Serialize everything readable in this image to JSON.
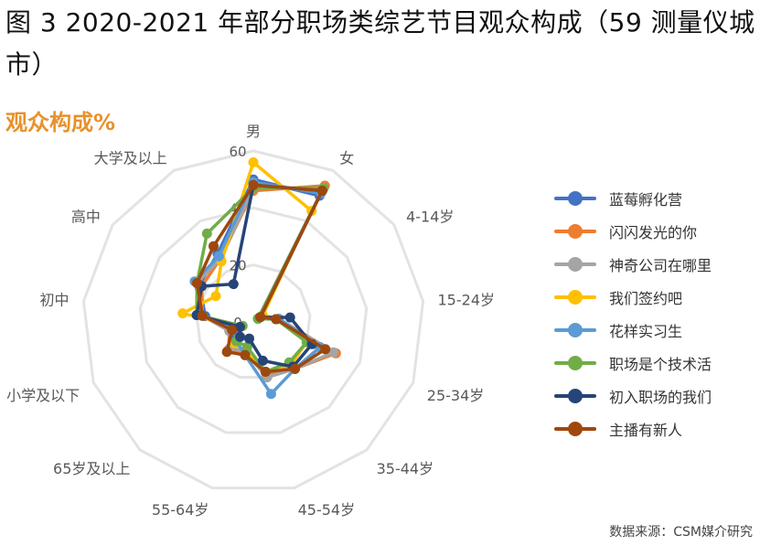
{
  "title": "图 3 2020-2021 年部分职场类综艺节目观众构成（59 测量仪城市）",
  "subtitle": "观众构成%",
  "source": "数据来源：CSM媒介研究",
  "chart_data": {
    "type": "radar",
    "axes": [
      "男",
      "女",
      "4-14岁",
      "15-24岁",
      "25-34岁",
      "35-44岁",
      "45-54岁",
      "55-64岁",
      "65岁及以上",
      "小学及以下",
      "初中",
      "高中",
      "大学及以上"
    ],
    "radial_ticks": [
      0,
      20,
      40,
      60
    ],
    "rlim": [
      0,
      60
    ],
    "grid": true,
    "legend_position": "right",
    "series": [
      {
        "name": "蓝莓孵化营",
        "color": "#4472c4",
        "values": [
          50,
          50,
          2,
          8,
          25,
          22,
          20,
          11,
          12,
          7,
          17,
          23,
          27
        ]
      },
      {
        "name": "闪闪发光的你",
        "color": "#ed7d31",
        "values": [
          46,
          54,
          2,
          9,
          31,
          22,
          19,
          11,
          13,
          9,
          18,
          22,
          25
        ]
      },
      {
        "name": "神奇公司在哪里",
        "color": "#a5a5a5",
        "values": [
          47,
          53,
          2,
          9,
          30,
          22,
          20,
          11,
          12,
          9,
          18,
          24,
          25
        ]
      },
      {
        "name": "我们签约吧",
        "color": "#ffc000",
        "values": [
          56,
          44,
          4,
          9,
          20,
          20,
          18,
          11,
          10,
          5,
          25,
          16,
          24
        ]
      },
      {
        "name": "花样实习生",
        "color": "#5b9bd5",
        "values": [
          49,
          51,
          2,
          9,
          25,
          22,
          26,
          12,
          9,
          7,
          18,
          25,
          26
        ]
      },
      {
        "name": "职场是个技术活",
        "color": "#70ad47",
        "values": [
          47,
          53,
          2,
          8,
          20,
          19,
          18,
          9,
          9,
          4,
          20,
          24,
          35
        ]
      },
      {
        "name": "初入职场的我们",
        "color": "#264478",
        "values": [
          48,
          52,
          3,
          13,
          22,
          21,
          14,
          6,
          7,
          5,
          20,
          22,
          15
        ]
      },
      {
        "name": "主播有新人",
        "color": "#9e480e",
        "values": [
          48,
          52,
          3,
          8,
          27,
          22,
          18,
          12,
          14,
          8,
          18,
          24,
          30
        ]
      }
    ]
  }
}
